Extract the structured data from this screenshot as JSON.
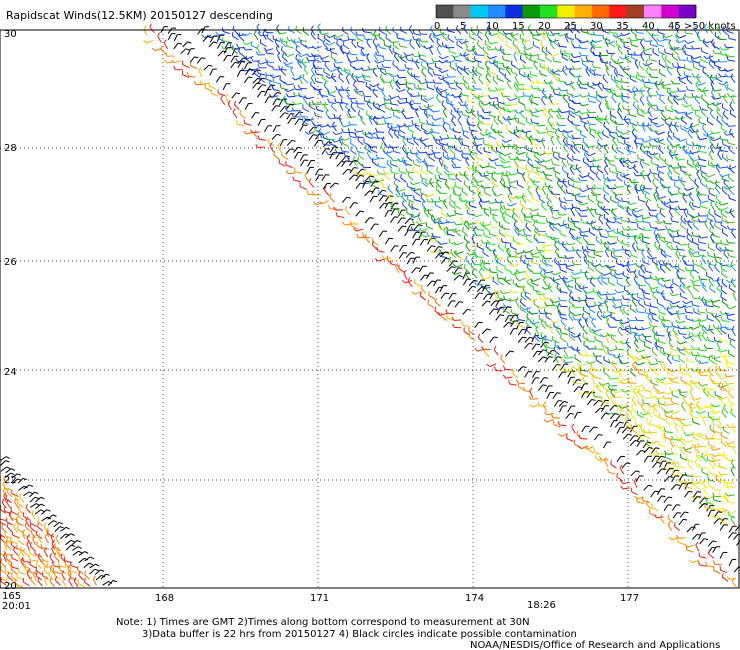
{
  "title": "Rapidscat Winds(12.5KM) 20150127 descending",
  "legend": {
    "colors": [
      "#505050",
      "#8a8a8a",
      "#00c8f0",
      "#1f8cff",
      "#0b2fe0",
      "#0a9a0a",
      "#22e022",
      "#f0f000",
      "#ffb000",
      "#ff6a00",
      "#ff1a1a",
      "#a04020",
      "#ff80ff",
      "#d000d0",
      "#7a00c8"
    ],
    "labels": [
      "0",
      "5",
      "10",
      "15",
      "20",
      "25",
      "30",
      "35",
      "40",
      "45",
      ">50 knots"
    ]
  },
  "lat_labels": [
    "30",
    "28",
    "26",
    "24",
    "22",
    "20"
  ],
  "lon_labels": [
    "165",
    "168",
    "171",
    "174",
    "177"
  ],
  "times": {
    "left": "20:01",
    "right": "18:26"
  },
  "time_colors": {
    "left": "#8000a0",
    "right": "#8000a0"
  },
  "notes": {
    "line1": "Note: 1) Times are GMT 2)Times along bottom correspond to measurement at 30N",
    "line2": "3)Data buffer is 22 hrs from 20150127 4) Black circles indicate possible contamination",
    "line3": "NOAA/NESDIS/Office of Research and Applications"
  }
}
